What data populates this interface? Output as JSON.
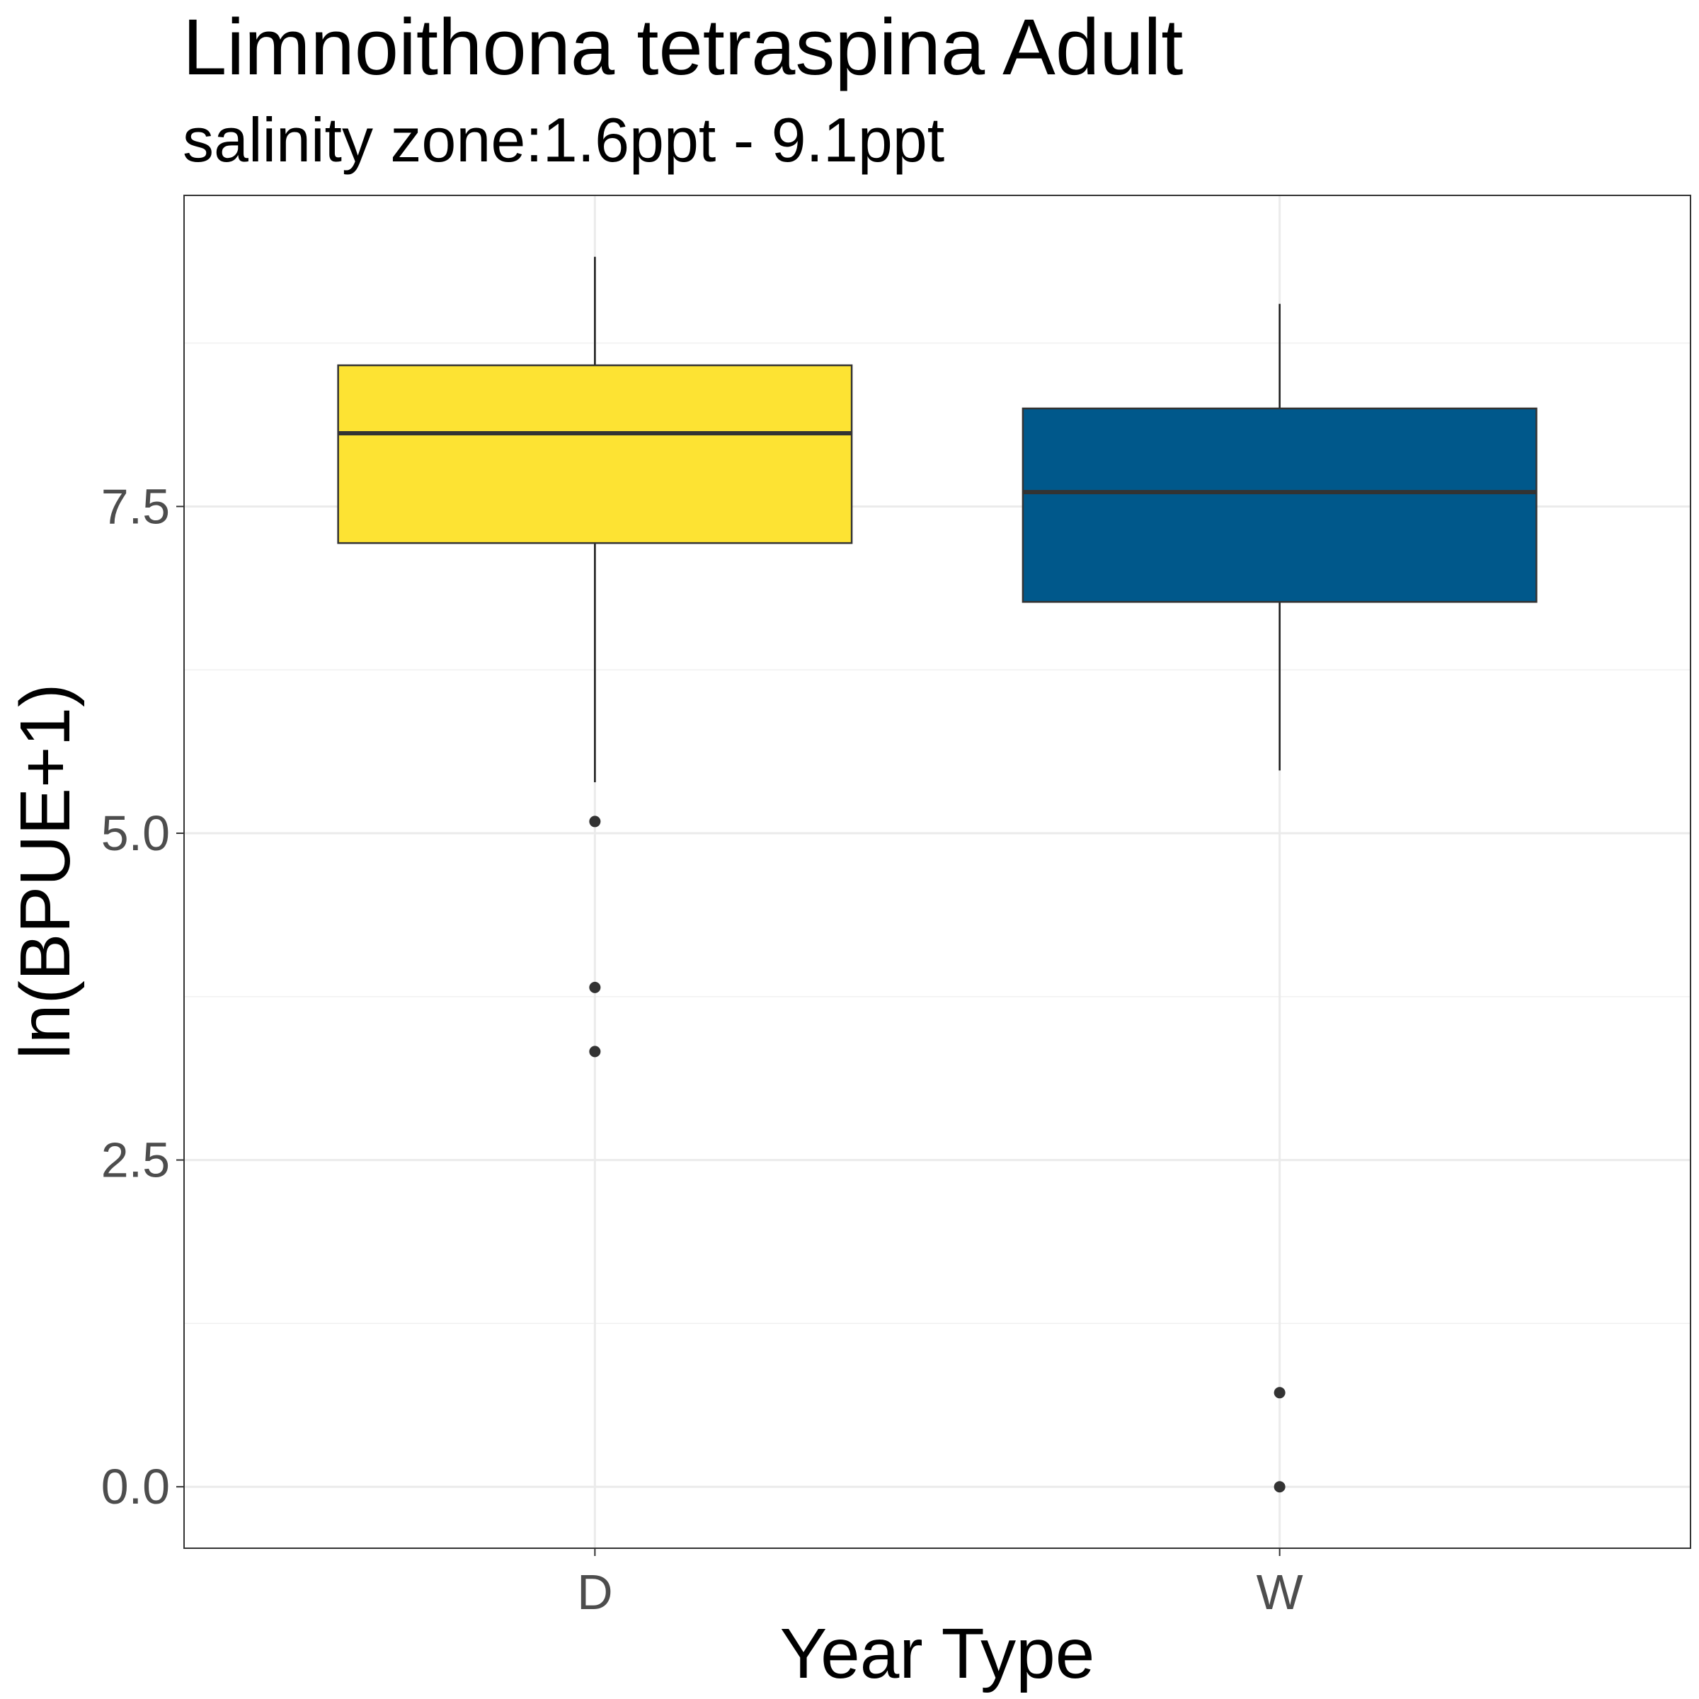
{
  "chart_data": {
    "type": "boxplot",
    "title": "Limnoithona tetraspina Adult",
    "subtitle": "salinity zone:1.6ppt - 9.1ppt",
    "xlabel": "Year Type",
    "ylabel": "ln(BPUE+1)",
    "ylim": [
      -0.47,
      9.88
    ],
    "y_ticks": [
      0.0,
      2.5,
      5.0,
      7.5
    ],
    "y_tick_labels": [
      "0.0",
      "2.5",
      "5.0",
      "7.5"
    ],
    "grid": true,
    "legend": "none",
    "categories": [
      "D",
      "W"
    ],
    "boxes": [
      {
        "category": "D",
        "color": "#FDE333",
        "whisker_low": 5.39,
        "q1": 7.22,
        "median": 8.06,
        "q3": 8.58,
        "whisker_high": 9.41,
        "outliers": [
          5.09,
          3.82,
          3.33
        ]
      },
      {
        "category": "W",
        "color": "#00588B",
        "whisker_low": 5.48,
        "q1": 6.77,
        "median": 7.61,
        "q3": 8.25,
        "whisker_high": 9.05,
        "outliers": [
          0.72,
          0.0
        ]
      }
    ]
  }
}
